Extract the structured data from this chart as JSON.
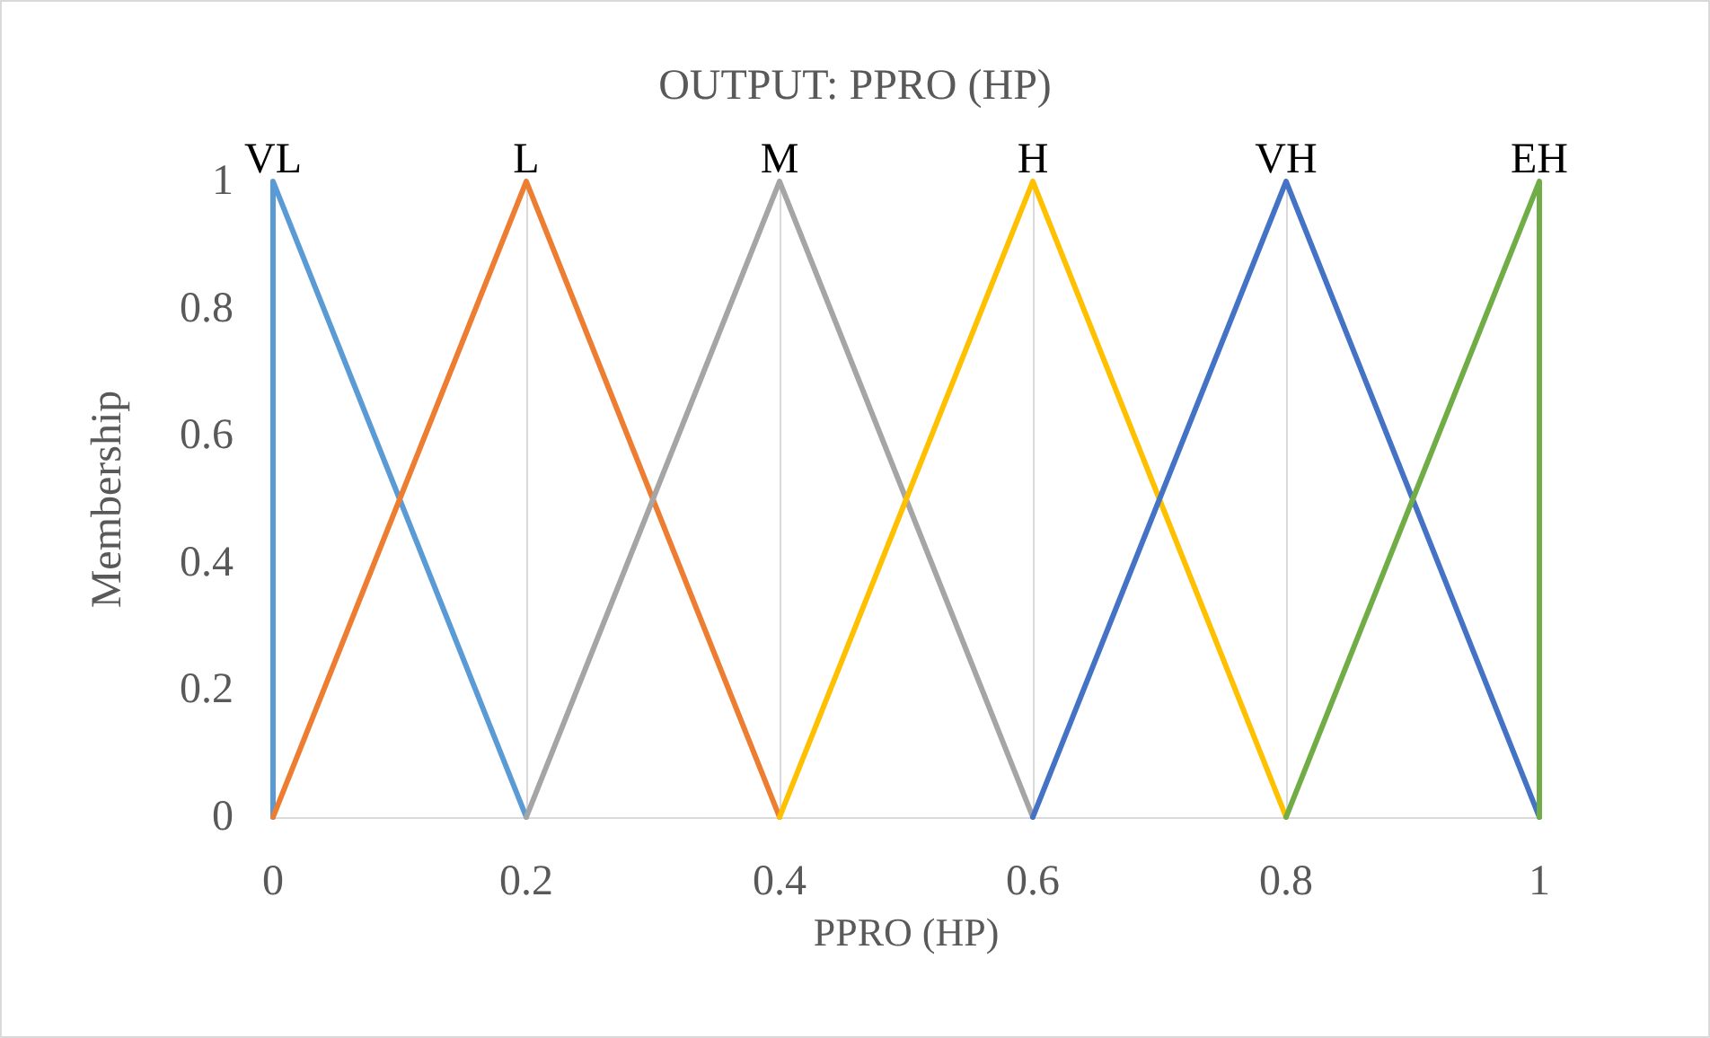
{
  "chart_data": {
    "type": "line",
    "title": "OUTPUT: PPRO (HP)",
    "xlabel": "PPRO (HP)",
    "ylabel": "Membership",
    "series": [
      {
        "name": "VL",
        "color": "#5b9bd5",
        "x": [
          0,
          0,
          0.2
        ],
        "values": [
          0,
          1,
          0
        ]
      },
      {
        "name": "L",
        "color": "#ed7d31",
        "x": [
          0,
          0.2,
          0.4
        ],
        "values": [
          0,
          1,
          0
        ]
      },
      {
        "name": "M",
        "color": "#a5a5a5",
        "x": [
          0.2,
          0.4,
          0.6
        ],
        "values": [
          0,
          1,
          0
        ]
      },
      {
        "name": "H",
        "color": "#ffc000",
        "x": [
          0.4,
          0.6,
          0.8
        ],
        "values": [
          0,
          1,
          0
        ]
      },
      {
        "name": "VH",
        "color": "#4472c4",
        "x": [
          0.6,
          0.8,
          1
        ],
        "values": [
          0,
          1,
          0
        ]
      },
      {
        "name": "EH",
        "color": "#70ad47",
        "x": [
          0.8,
          1,
          1
        ],
        "values": [
          0,
          1,
          0
        ]
      }
    ],
    "xlim": [
      0,
      1
    ],
    "xticks": [
      0,
      0.2,
      0.4,
      0.6,
      0.8,
      1
    ],
    "ylim": [
      0,
      1
    ],
    "yticks": [
      0,
      0.2,
      0.4,
      0.6,
      0.8,
      1
    ],
    "grid": "x",
    "legend": false,
    "marker": "none",
    "line_style": "solid"
  }
}
